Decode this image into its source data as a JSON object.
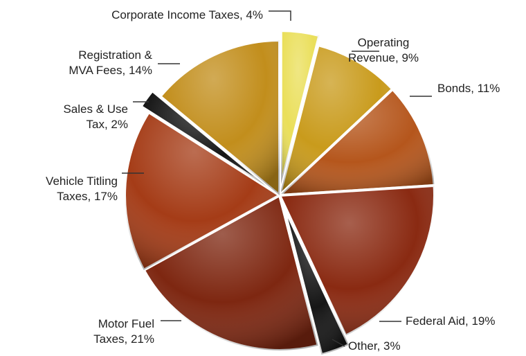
{
  "chart_data": {
    "type": "pie",
    "title": "",
    "legend": "none",
    "slices": [
      {
        "lines": [
          "Corporate Income Taxes, 4%"
        ],
        "value": 4,
        "color": "#eadf5a",
        "exploded": true
      },
      {
        "lines": [
          "Operating",
          "Revenue, 9%"
        ],
        "value": 9,
        "color": "#c99b1c"
      },
      {
        "lines": [
          "Bonds, 11%"
        ],
        "value": 11,
        "color": "#b5561c"
      },
      {
        "lines": [
          "Federal Aid, 19%"
        ],
        "value": 19,
        "color": "#8a2a12"
      },
      {
        "lines": [
          "Other, 3%"
        ],
        "value": 3,
        "color": "#161616",
        "exploded": true
      },
      {
        "lines": [
          "Motor Fuel",
          "Taxes, 21%"
        ],
        "value": 21,
        "color": "#7e2711"
      },
      {
        "lines": [
          "Vehicle Titling",
          "Taxes, 17%"
        ],
        "value": 17,
        "color": "#a53c17"
      },
      {
        "lines": [
          "Sales & Use",
          "Tax, 2%"
        ],
        "value": 2,
        "color": "#161616",
        "exploded": true
      },
      {
        "lines": [
          "Registration &",
          "MVA Fees, 14%"
        ],
        "value": 14,
        "color": "#c28e1c"
      }
    ]
  }
}
